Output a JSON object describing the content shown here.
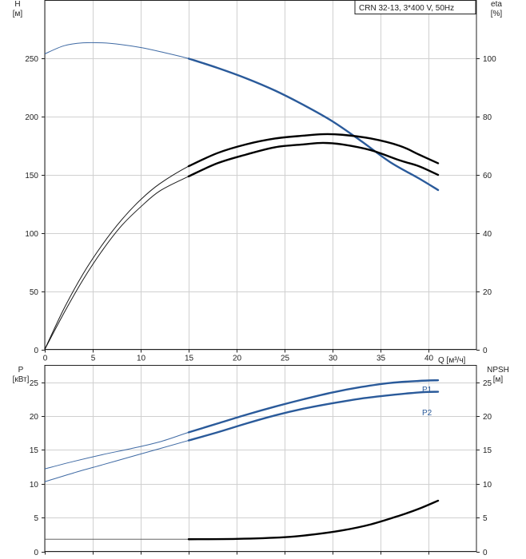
{
  "chart_data": [
    {
      "type": "line",
      "title": "CRN 32-13, 3*400 V, 50Hz",
      "xlabel": "Q [м³/ч]",
      "ylabel_left": [
        "H",
        "[м]"
      ],
      "ylabel_right": [
        "eta",
        "[%]"
      ],
      "xlim": [
        0,
        45
      ],
      "ylim_left": [
        0,
        300
      ],
      "ylim_right": [
        0,
        120
      ],
      "x_ticks": [
        0,
        5,
        10,
        15,
        20,
        25,
        30,
        35,
        40
      ],
      "y_ticks_left": [
        0,
        50,
        100,
        150,
        200,
        250
      ],
      "y_ticks_right": [
        0,
        20,
        40,
        60,
        80,
        100
      ],
      "grid": true,
      "series": [
        {
          "axis": "left",
          "color": "#2a5a9a",
          "thin_color": "#2a5a9a",
          "operating_range": [
            15,
            41
          ],
          "x": [
            0,
            2,
            4,
            6,
            8,
            10,
            12,
            15,
            18,
            21,
            24,
            27,
            30,
            33,
            36,
            39,
            41
          ],
          "values": [
            254,
            261,
            263.5,
            263.5,
            262,
            259.5,
            256,
            250,
            242,
            233,
            222.5,
            210,
            196,
            179,
            161,
            147,
            137
          ]
        },
        {
          "axis": "right",
          "color": "#000000",
          "thin_color": "#000000",
          "operating_range": [
            15,
            41
          ],
          "x": [
            0,
            2,
            4,
            6,
            8,
            10,
            12,
            15,
            18,
            21,
            24,
            27,
            29,
            31,
            34,
            37,
            39,
            41
          ],
          "values": [
            0,
            14,
            26,
            36,
            44.5,
            51.5,
            57,
            63,
            67.5,
            70.5,
            72.5,
            73.5,
            74,
            73.8,
            72.5,
            70,
            67,
            64
          ]
        },
        {
          "axis": "right",
          "color": "#000000",
          "thin_color": "#000000",
          "operating_range": [
            15,
            41
          ],
          "x": [
            0,
            2,
            4,
            6,
            8,
            10,
            12,
            15,
            18,
            21,
            24,
            27,
            29,
            31,
            34,
            37,
            39,
            41
          ],
          "values": [
            0,
            12.5,
            24,
            34,
            42.5,
            49,
            54.5,
            59.5,
            64,
            67,
            69.5,
            70.5,
            71,
            70.5,
            68.5,
            65,
            63,
            60
          ]
        }
      ]
    },
    {
      "type": "line",
      "xlabel": "",
      "ylabel_left": [
        "P",
        "[кВт]"
      ],
      "ylabel_right": [
        "NPSH",
        "[м]"
      ],
      "xlim": [
        0,
        45
      ],
      "ylim_left": [
        0,
        27.5
      ],
      "ylim_right": [
        0,
        27.5
      ],
      "x_ticks": [
        0,
        5,
        10,
        15,
        20,
        25,
        30,
        35,
        40
      ],
      "y_ticks_left": [
        0,
        5,
        10,
        15,
        20,
        25
      ],
      "y_ticks_right": [
        0,
        5,
        10,
        15,
        20,
        25
      ],
      "grid": true,
      "series": [
        {
          "name": "P1",
          "axis": "left",
          "color": "#2a5a9a",
          "thin_color": "#2a5a9a",
          "operating_range": [
            15,
            41
          ],
          "x": [
            0,
            3,
            6,
            9,
            12,
            15,
            18,
            21,
            24,
            27,
            30,
            33,
            36,
            39,
            41
          ],
          "values": [
            12.2,
            13.3,
            14.3,
            15.2,
            16.2,
            17.6,
            18.9,
            20.2,
            21.4,
            22.5,
            23.5,
            24.3,
            24.9,
            25.2,
            25.3
          ]
        },
        {
          "name": "P2",
          "axis": "left",
          "color": "#2a5a9a",
          "thin_color": "#2a5a9a",
          "operating_range": [
            15,
            41
          ],
          "x": [
            0,
            3,
            6,
            9,
            12,
            15,
            18,
            21,
            24,
            27,
            30,
            33,
            36,
            39,
            41
          ],
          "values": [
            10.3,
            11.6,
            12.8,
            14,
            15.2,
            16.4,
            17.6,
            18.9,
            20.1,
            21.1,
            21.9,
            22.6,
            23.1,
            23.5,
            23.6
          ]
        },
        {
          "axis": "right",
          "color": "#000000",
          "thin_color": "#555555",
          "operating_range": [
            15,
            41
          ],
          "x": [
            0,
            5,
            10,
            15,
            20,
            25,
            28,
            31,
            34,
            37,
            39,
            41
          ],
          "values": [
            1.8,
            1.8,
            1.8,
            1.8,
            1.85,
            2.1,
            2.5,
            3.1,
            4.0,
            5.3,
            6.3,
            7.5
          ]
        }
      ]
    }
  ]
}
